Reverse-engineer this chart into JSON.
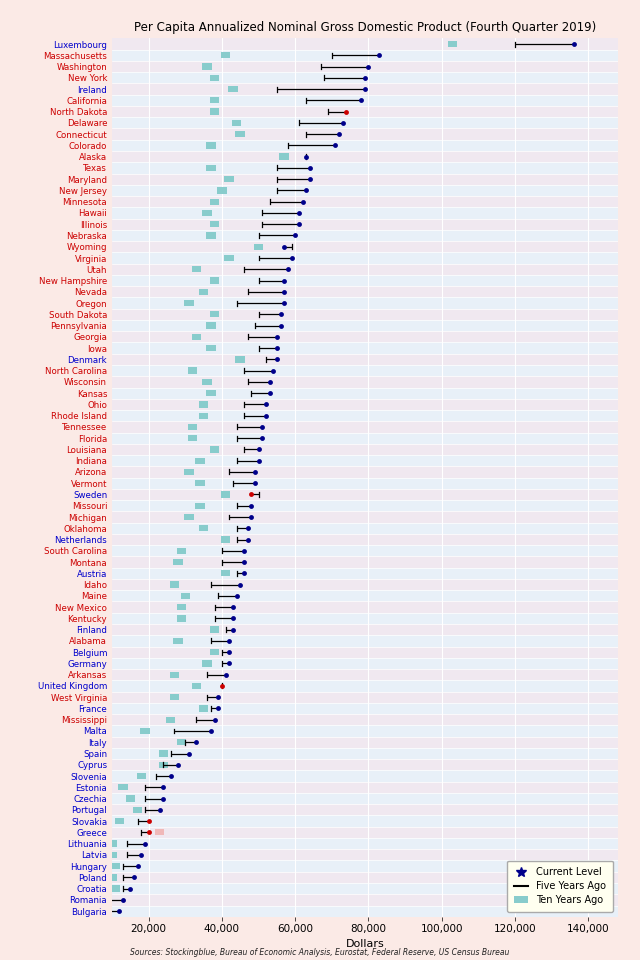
{
  "title": "Per Capita Annualized Nominal Gross Domestic Product (Fourth Quarter 2019)",
  "xlabel": "Dollars",
  "source": "Sources: Stockingblue, Bureau of Economic Analysis, Eurostat, Federal Reserve, US Census Bureau",
  "entries": [
    {
      "label": "Luxembourg",
      "eu": true,
      "current": 136000,
      "five": 120000,
      "ten": 103000,
      "dot_red": false
    },
    {
      "label": "Massachusetts",
      "eu": false,
      "current": 83000,
      "five": 70000,
      "ten": 41000,
      "dot_red": false
    },
    {
      "label": "Washington",
      "eu": false,
      "current": 80000,
      "five": 67000,
      "ten": 36000,
      "dot_red": false
    },
    {
      "label": "New York",
      "eu": false,
      "current": 79000,
      "five": 68000,
      "ten": 38000,
      "dot_red": false
    },
    {
      "label": "Ireland",
      "eu": true,
      "current": 79000,
      "five": 55000,
      "ten": 43000,
      "dot_red": false
    },
    {
      "label": "California",
      "eu": false,
      "current": 78000,
      "five": 63000,
      "ten": 38000,
      "dot_red": false
    },
    {
      "label": "North Dakota",
      "eu": false,
      "current": 74000,
      "five": 69000,
      "ten": 38000,
      "dot_red": true
    },
    {
      "label": "Delaware",
      "eu": false,
      "current": 73000,
      "five": 61000,
      "ten": 44000,
      "dot_red": false
    },
    {
      "label": "Connecticut",
      "eu": false,
      "current": 72000,
      "five": 63000,
      "ten": 45000,
      "dot_red": false
    },
    {
      "label": "Colorado",
      "eu": false,
      "current": 71000,
      "five": 58000,
      "ten": 37000,
      "dot_red": false
    },
    {
      "label": "Alaska",
      "eu": false,
      "current": 63000,
      "five": 63000,
      "ten": 57000,
      "dot_red": false
    },
    {
      "label": "Texas",
      "eu": false,
      "current": 64000,
      "five": 55000,
      "ten": 37000,
      "dot_red": false
    },
    {
      "label": "Maryland",
      "eu": false,
      "current": 64000,
      "five": 55000,
      "ten": 42000,
      "dot_red": false
    },
    {
      "label": "New Jersey",
      "eu": false,
      "current": 63000,
      "five": 55000,
      "ten": 40000,
      "dot_red": false
    },
    {
      "label": "Minnesota",
      "eu": false,
      "current": 62000,
      "five": 53000,
      "ten": 38000,
      "dot_red": false
    },
    {
      "label": "Hawaii",
      "eu": false,
      "current": 61000,
      "five": 51000,
      "ten": 36000,
      "dot_red": false
    },
    {
      "label": "Illinois",
      "eu": false,
      "current": 61000,
      "five": 51000,
      "ten": 38000,
      "dot_red": false
    },
    {
      "label": "Nebraska",
      "eu": false,
      "current": 60000,
      "five": 50000,
      "ten": 37000,
      "dot_red": false
    },
    {
      "label": "Wyoming",
      "eu": false,
      "current": 57000,
      "five": 59000,
      "ten": 50000,
      "dot_red": false
    },
    {
      "label": "Virginia",
      "eu": false,
      "current": 59000,
      "five": 50000,
      "ten": 42000,
      "dot_red": false
    },
    {
      "label": "Utah",
      "eu": false,
      "current": 58000,
      "five": 46000,
      "ten": 33000,
      "dot_red": false
    },
    {
      "label": "New Hampshire",
      "eu": false,
      "current": 57000,
      "five": 50000,
      "ten": 38000,
      "dot_red": false
    },
    {
      "label": "Nevada",
      "eu": false,
      "current": 57000,
      "five": 47000,
      "ten": 35000,
      "dot_red": false
    },
    {
      "label": "Oregon",
      "eu": false,
      "current": 57000,
      "five": 44000,
      "ten": 31000,
      "dot_red": false
    },
    {
      "label": "South Dakota",
      "eu": false,
      "current": 56000,
      "five": 50000,
      "ten": 38000,
      "dot_red": false
    },
    {
      "label": "Pennsylvania",
      "eu": false,
      "current": 56000,
      "five": 49000,
      "ten": 37000,
      "dot_red": false
    },
    {
      "label": "Georgia",
      "eu": false,
      "current": 55000,
      "five": 47000,
      "ten": 33000,
      "dot_red": false
    },
    {
      "label": "Iowa",
      "eu": false,
      "current": 55000,
      "five": 50000,
      "ten": 37000,
      "dot_red": false
    },
    {
      "label": "Denmark",
      "eu": true,
      "current": 55000,
      "five": 52000,
      "ten": 45000,
      "dot_red": false
    },
    {
      "label": "North Carolina",
      "eu": false,
      "current": 54000,
      "five": 46000,
      "ten": 32000,
      "dot_red": false
    },
    {
      "label": "Wisconsin",
      "eu": false,
      "current": 53000,
      "five": 47000,
      "ten": 36000,
      "dot_red": false
    },
    {
      "label": "Kansas",
      "eu": false,
      "current": 53000,
      "five": 48000,
      "ten": 37000,
      "dot_red": false
    },
    {
      "label": "Ohio",
      "eu": false,
      "current": 52000,
      "five": 46000,
      "ten": 35000,
      "dot_red": false
    },
    {
      "label": "Rhode Island",
      "eu": false,
      "current": 52000,
      "five": 46000,
      "ten": 35000,
      "dot_red": false
    },
    {
      "label": "Tennessee",
      "eu": false,
      "current": 51000,
      "five": 44000,
      "ten": 32000,
      "dot_red": false
    },
    {
      "label": "Florida",
      "eu": false,
      "current": 51000,
      "five": 44000,
      "ten": 32000,
      "dot_red": false
    },
    {
      "label": "Louisiana",
      "eu": false,
      "current": 50000,
      "five": 46000,
      "ten": 38000,
      "dot_red": false
    },
    {
      "label": "Indiana",
      "eu": false,
      "current": 50000,
      "five": 44000,
      "ten": 34000,
      "dot_red": false
    },
    {
      "label": "Arizona",
      "eu": false,
      "current": 49000,
      "five": 42000,
      "ten": 31000,
      "dot_red": false
    },
    {
      "label": "Vermont",
      "eu": false,
      "current": 49000,
      "five": 43000,
      "ten": 34000,
      "dot_red": false
    },
    {
      "label": "Sweden",
      "eu": true,
      "current": 48000,
      "five": 50000,
      "ten": 41000,
      "dot_red": true
    },
    {
      "label": "Missouri",
      "eu": false,
      "current": 48000,
      "five": 44000,
      "ten": 34000,
      "dot_red": false
    },
    {
      "label": "Michigan",
      "eu": false,
      "current": 48000,
      "five": 42000,
      "ten": 31000,
      "dot_red": false
    },
    {
      "label": "Oklahoma",
      "eu": false,
      "current": 47000,
      "five": 44000,
      "ten": 35000,
      "dot_red": false
    },
    {
      "label": "Netherlands",
      "eu": true,
      "current": 47000,
      "five": 44000,
      "ten": 41000,
      "dot_red": false
    },
    {
      "label": "South Carolina",
      "eu": false,
      "current": 46000,
      "five": 40000,
      "ten": 29000,
      "dot_red": false
    },
    {
      "label": "Montana",
      "eu": false,
      "current": 46000,
      "five": 40000,
      "ten": 28000,
      "dot_red": false
    },
    {
      "label": "Austria",
      "eu": true,
      "current": 46000,
      "five": 44000,
      "ten": 41000,
      "dot_red": false
    },
    {
      "label": "Idaho",
      "eu": false,
      "current": 45000,
      "five": 37000,
      "ten": 27000,
      "dot_red": false
    },
    {
      "label": "Maine",
      "eu": false,
      "current": 44000,
      "five": 39000,
      "ten": 30000,
      "dot_red": false
    },
    {
      "label": "New Mexico",
      "eu": false,
      "current": 43000,
      "five": 38000,
      "ten": 29000,
      "dot_red": false
    },
    {
      "label": "Kentucky",
      "eu": false,
      "current": 43000,
      "five": 38000,
      "ten": 29000,
      "dot_red": false
    },
    {
      "label": "Finland",
      "eu": true,
      "current": 43000,
      "five": 41000,
      "ten": 38000,
      "dot_red": false
    },
    {
      "label": "Alabama",
      "eu": false,
      "current": 42000,
      "five": 37000,
      "ten": 28000,
      "dot_red": false
    },
    {
      "label": "Belgium",
      "eu": true,
      "current": 42000,
      "five": 40000,
      "ten": 38000,
      "dot_red": false
    },
    {
      "label": "Germany",
      "eu": true,
      "current": 42000,
      "five": 40000,
      "ten": 36000,
      "dot_red": false
    },
    {
      "label": "Arkansas",
      "eu": false,
      "current": 41000,
      "five": 36000,
      "ten": 27000,
      "dot_red": false
    },
    {
      "label": "United Kingdom",
      "eu": true,
      "current": 40000,
      "five": 40000,
      "ten": 33000,
      "dot_red": true
    },
    {
      "label": "West Virginia",
      "eu": false,
      "current": 39000,
      "five": 36000,
      "ten": 27000,
      "dot_red": false
    },
    {
      "label": "France",
      "eu": true,
      "current": 39000,
      "five": 37000,
      "ten": 35000,
      "dot_red": false
    },
    {
      "label": "Mississippi",
      "eu": false,
      "current": 38000,
      "five": 33000,
      "ten": 26000,
      "dot_red": false
    },
    {
      "label": "Malta",
      "eu": true,
      "current": 37000,
      "five": 27000,
      "ten": 19000,
      "dot_red": false
    },
    {
      "label": "Italy",
      "eu": true,
      "current": 33000,
      "five": 30000,
      "ten": 29000,
      "dot_red": false
    },
    {
      "label": "Spain",
      "eu": true,
      "current": 31000,
      "five": 26000,
      "ten": 24000,
      "dot_red": false
    },
    {
      "label": "Cyprus",
      "eu": true,
      "current": 28000,
      "five": 24000,
      "ten": 24000,
      "dot_red": false
    },
    {
      "label": "Slovenia",
      "eu": true,
      "current": 26000,
      "five": 22000,
      "ten": 18000,
      "dot_red": false
    },
    {
      "label": "Estonia",
      "eu": true,
      "current": 24000,
      "five": 19000,
      "ten": 13000,
      "dot_red": false
    },
    {
      "label": "Czechia",
      "eu": true,
      "current": 24000,
      "five": 19000,
      "ten": 15000,
      "dot_red": false
    },
    {
      "label": "Portugal",
      "eu": true,
      "current": 23000,
      "five": 19000,
      "ten": 17000,
      "dot_red": false
    },
    {
      "label": "Slovakia",
      "eu": true,
      "current": 20000,
      "five": 17000,
      "ten": 12000,
      "dot_red": true
    },
    {
      "label": "Greece",
      "eu": true,
      "current": 20000,
      "five": 18000,
      "ten": 23000,
      "dot_red": true
    },
    {
      "label": "Lithuania",
      "eu": true,
      "current": 19000,
      "five": 14000,
      "ten": 10000,
      "dot_red": false
    },
    {
      "label": "Latvia",
      "eu": true,
      "current": 18000,
      "five": 14000,
      "ten": 10000,
      "dot_red": false
    },
    {
      "label": "Hungary",
      "eu": true,
      "current": 17000,
      "five": 13000,
      "ten": 11000,
      "dot_red": false
    },
    {
      "label": "Poland",
      "eu": true,
      "current": 16000,
      "five": 13000,
      "ten": 10000,
      "dot_red": false
    },
    {
      "label": "Croatia",
      "eu": true,
      "current": 15000,
      "five": 13000,
      "ten": 11000,
      "dot_red": false
    },
    {
      "label": "Romania",
      "eu": true,
      "current": 13000,
      "five": 9000,
      "ten": 7000,
      "dot_red": false
    },
    {
      "label": "Bulgaria",
      "eu": true,
      "current": 12000,
      "five": 8000,
      "ten": 6000,
      "dot_red": false
    }
  ],
  "xlim": [
    10000,
    148000
  ],
  "xticks": [
    20000,
    40000,
    60000,
    80000,
    100000,
    120000,
    140000
  ],
  "xtick_labels": [
    "20,000",
    "40,000",
    "60,000",
    "80,000",
    "100,000",
    "120,000",
    "140,000"
  ],
  "row_bg_even": "#f0e8f0",
  "row_bg_odd": "#e8f0f8",
  "outer_bg": "#fbeae6",
  "grid_color": "#d8d8d8",
  "dot_color_blue": "#00008b",
  "dot_color_red": "#cc0000",
  "line_color": "#00008b",
  "sq_color_teal": "#88cccc",
  "sq_color_pink": "#f0b8b8",
  "eu_label_color": "#0000cc",
  "us_label_color": "#cc0000",
  "legend_bg": "#fffff0"
}
